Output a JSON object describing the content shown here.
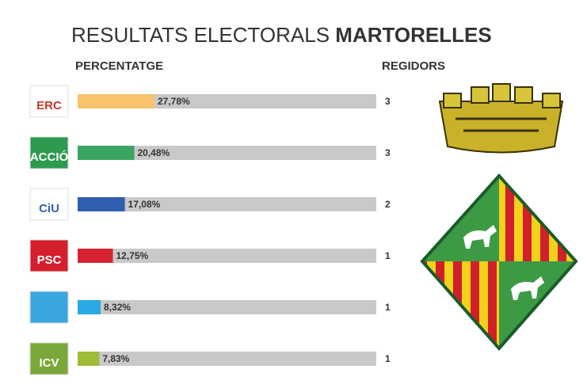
{
  "chart_data": {
    "type": "bar",
    "title": "RESULTATS ELECTORALS",
    "title_emphasis": "MARTORELLES",
    "value_header": "PERCENTATGE",
    "seats_header": "REGIDORS",
    "categories": [
      "ERC",
      "ACCIÓ",
      "CiU",
      "PSC",
      null,
      "ICV"
    ],
    "values": [
      27.78,
      20.48,
      17.08,
      12.75,
      8.32,
      7.83
    ],
    "value_labels": [
      "27,78%",
      "20,48%",
      "17,08%",
      "12,75%",
      "8,32%",
      "7,83%"
    ],
    "colors": [
      "#f7c46c",
      "#3aa561",
      "#2f5fae",
      "#d62230",
      "#29a9e6",
      "#9ebc35"
    ],
    "logo_colors": [
      "#ffffff",
      "#2e9a4f",
      "#ffffff",
      "#d4202c",
      "#3aa6e0",
      "#7aa83a"
    ],
    "logo_text_colors": [
      "#c0392b",
      "#ffffff",
      "#2f5fae",
      "#ffffff",
      "#ffffff",
      "#ffffff"
    ],
    "seats": [
      3,
      3,
      2,
      1,
      1,
      1
    ],
    "track_color": "#c9c9c9",
    "xlim": [
      0,
      108
    ]
  }
}
